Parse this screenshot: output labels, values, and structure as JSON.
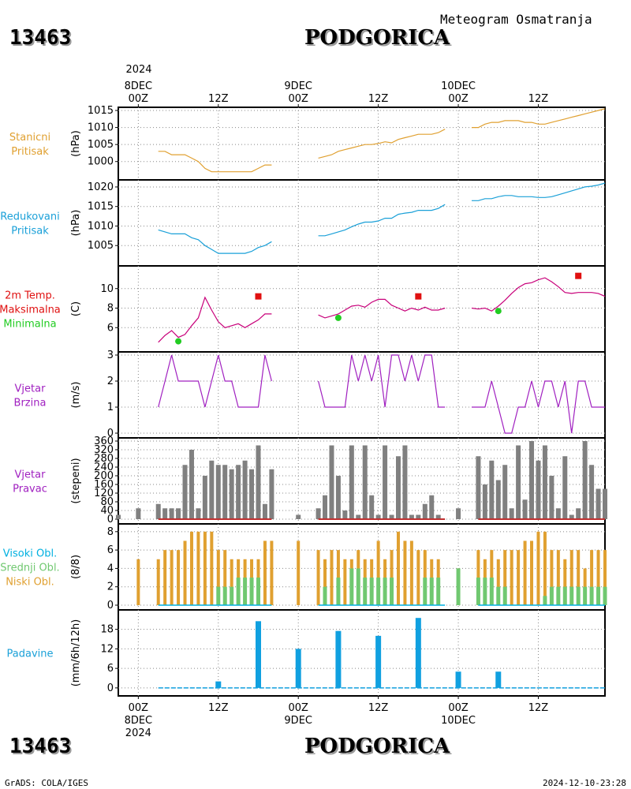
{
  "header": {
    "station_id": "13463",
    "station_name": "PODGORICA",
    "subtitle": "Meteogram Osmatranja"
  },
  "footer": {
    "station_id": "13463",
    "station_name": "PODGORICA",
    "credit": "GrADS: COLA/IGES",
    "timestamp": "2024-12-10-23:28"
  },
  "colors": {
    "pressure": "#e0a030",
    "reduced": "#1aa0d8",
    "tmax": "#c8007a",
    "tmin_marker": "#22cc22",
    "tmax_marker": "#e01010",
    "wind": "#a020c0",
    "dir_bars": "#808080",
    "dir_base": "#c03030",
    "high_cloud": "#00b0e0",
    "mid_cloud": "#70c870",
    "low_cloud": "#e0a030",
    "precip": "#10a0e0",
    "grid": "#888888"
  },
  "time_axis": {
    "top_year": "2024",
    "top_labels": [
      {
        "hour": 0,
        "lines": [
          "8DEC",
          "00Z"
        ]
      },
      {
        "hour": 12,
        "lines": [
          "12Z"
        ]
      },
      {
        "hour": 24,
        "lines": [
          "9DEC",
          "00Z"
        ]
      },
      {
        "hour": 36,
        "lines": [
          "12Z"
        ]
      },
      {
        "hour": 48,
        "lines": [
          "10DEC",
          "00Z"
        ]
      },
      {
        "hour": 60,
        "lines": [
          "12Z"
        ]
      }
    ],
    "bottom_labels": [
      {
        "hour": 0,
        "lines": [
          "00Z",
          "8DEC",
          "2024"
        ]
      },
      {
        "hour": 12,
        "lines": [
          "12Z"
        ]
      },
      {
        "hour": 24,
        "lines": [
          "00Z",
          "9DEC"
        ]
      },
      {
        "hour": 36,
        "lines": [
          "12Z"
        ]
      },
      {
        "hour": 48,
        "lines": [
          "00Z",
          "10DEC"
        ]
      },
      {
        "hour": 60,
        "lines": [
          "12Z"
        ]
      }
    ],
    "range": [
      -3,
      70
    ]
  },
  "chart_data": [
    {
      "type": "line",
      "labels": [
        "Stanicni",
        "Pritisak"
      ],
      "label_colors": [
        "pressure",
        "pressure"
      ],
      "ylabel": "(hPa)",
      "ylim": [
        996,
        1015
      ],
      "yticks": [
        1000,
        1005,
        1010,
        1015
      ],
      "series": [
        {
          "color": "pressure",
          "x": [
            3,
            4,
            5,
            6,
            7,
            8,
            9,
            10,
            11,
            12,
            13,
            14,
            15,
            16,
            17,
            18,
            19,
            20,
            27,
            28,
            29,
            30,
            31,
            32,
            33,
            34,
            35,
            36,
            37,
            38,
            39,
            40,
            41,
            42,
            43,
            44,
            45,
            46,
            50,
            51,
            52,
            53,
            54,
            55,
            56,
            57,
            58,
            59,
            60,
            61,
            62,
            63,
            64,
            65,
            66,
            67,
            68,
            69,
            70
          ],
          "y": [
            1003,
            1003,
            1002,
            1002,
            1002,
            1001,
            1000,
            998,
            997,
            997,
            997,
            997,
            997,
            997,
            997,
            998,
            999,
            999,
            1001,
            1001.5,
            1002,
            1003,
            1003.5,
            1004,
            1004.5,
            1005,
            1005,
            1005.3,
            1005.8,
            1005.5,
            1006.5,
            1007,
            1007.5,
            1008,
            1008,
            1008,
            1008.5,
            1009.5,
            1010,
            1010,
            1011,
            1011.5,
            1011.5,
            1012,
            1012,
            1012,
            1011.5,
            1011.5,
            1011,
            1011,
            1011.5,
            1012,
            1012.5,
            1013,
            1013.5,
            1014,
            1014.5,
            1015,
            1015.5
          ],
          "gaps_after": [
            20,
            46
          ]
        }
      ]
    },
    {
      "type": "line",
      "labels": [
        "Redukovani",
        "Pritisak"
      ],
      "label_colors": [
        "reduced",
        "reduced"
      ],
      "ylabel": "(hPa)",
      "ylim": [
        1001,
        1021
      ],
      "yticks": [
        1005,
        1010,
        1015,
        1020
      ],
      "series": [
        {
          "color": "reduced",
          "x": [
            3,
            4,
            5,
            6,
            7,
            8,
            9,
            10,
            11,
            12,
            13,
            14,
            15,
            16,
            17,
            18,
            19,
            20,
            27,
            28,
            29,
            30,
            31,
            32,
            33,
            34,
            35,
            36,
            37,
            38,
            39,
            40,
            41,
            42,
            43,
            44,
            45,
            46,
            50,
            51,
            52,
            53,
            54,
            55,
            56,
            57,
            58,
            59,
            60,
            61,
            62,
            63,
            64,
            65,
            66,
            67,
            68,
            69,
            70
          ],
          "y": [
            1009,
            1008.5,
            1008,
            1008,
            1008,
            1007,
            1006.5,
            1005,
            1004,
            1003,
            1003,
            1003,
            1003,
            1003,
            1003.5,
            1004.5,
            1005,
            1006,
            1007.5,
            1007.5,
            1008,
            1008.5,
            1009,
            1009.8,
            1010.5,
            1011,
            1011,
            1011.3,
            1012,
            1012,
            1013,
            1013.3,
            1013.5,
            1014,
            1014,
            1014,
            1014.5,
            1015.5,
            1016.5,
            1016.5,
            1017,
            1017,
            1017.5,
            1017.8,
            1017.8,
            1017.5,
            1017.5,
            1017.5,
            1017.3,
            1017.3,
            1017.5,
            1018,
            1018.5,
            1019,
            1019.5,
            1020,
            1020.2,
            1020.5,
            1021
          ],
          "gaps_after": [
            20,
            46
          ]
        }
      ]
    },
    {
      "type": "line",
      "labels": [
        "2m Temp.",
        "Maksimalna",
        "Minimalna"
      ],
      "label_colors": [
        "tmax_marker",
        "tmax_marker",
        "tmin_marker"
      ],
      "ylabel": "(C)",
      "ylim": [
        4,
        12
      ],
      "yticks": [
        6,
        8,
        10
      ],
      "series": [
        {
          "color": "tmax",
          "x": [
            3,
            4,
            5,
            6,
            7,
            8,
            9,
            10,
            11,
            12,
            13,
            14,
            15,
            16,
            17,
            18,
            19,
            20,
            27,
            28,
            29,
            30,
            31,
            32,
            33,
            34,
            35,
            36,
            37,
            38,
            39,
            40,
            41,
            42,
            43,
            44,
            45,
            46,
            50,
            51,
            52,
            53,
            54,
            55,
            56,
            57,
            58,
            59,
            60,
            61,
            62,
            63,
            64,
            65,
            66,
            67,
            68,
            69,
            70
          ],
          "y": [
            4.5,
            5.2,
            5.7,
            5,
            5.3,
            6.2,
            7,
            9.1,
            7.8,
            6.6,
            6.0,
            6.2,
            6.4,
            6.0,
            6.4,
            6.8,
            7.4,
            7.4,
            7.3,
            7.0,
            7.2,
            7.4,
            7.8,
            8.2,
            8.3,
            8.1,
            8.6,
            8.9,
            8.9,
            8.3,
            8.0,
            7.7,
            8.0,
            7.8,
            8.1,
            7.8,
            7.8,
            8.0,
            8.0,
            7.9,
            8.0,
            7.7,
            8.2,
            8.8,
            9.5,
            10.1,
            10.5,
            10.6,
            10.9,
            11.1,
            10.7,
            10.2,
            9.6,
            9.5,
            9.6,
            9.6,
            9.6,
            9.5,
            9.2
          ],
          "gaps_after": [
            20,
            46
          ]
        }
      ],
      "min_markers": [
        {
          "x": 6,
          "y": 4.6
        },
        {
          "x": 30,
          "y": 7.0
        },
        {
          "x": 54,
          "y": 7.7
        }
      ],
      "max_markers": [
        {
          "x": 18,
          "y": 9.2
        },
        {
          "x": 42,
          "y": 9.2
        },
        {
          "x": 66,
          "y": 11.3
        }
      ]
    },
    {
      "type": "line",
      "labels": [
        "Vjetar",
        "Brzina"
      ],
      "label_colors": [
        "wind",
        "wind"
      ],
      "ylabel": "(m/s)",
      "ylim": [
        0,
        3
      ],
      "yticks": [
        0,
        1,
        2,
        3
      ],
      "series": [
        {
          "color": "wind",
          "x": [
            3,
            4,
            5,
            6,
            7,
            8,
            9,
            10,
            11,
            12,
            13,
            14,
            15,
            16,
            17,
            18,
            19,
            20,
            27,
            28,
            29,
            30,
            31,
            32,
            33,
            34,
            35,
            36,
            37,
            38,
            39,
            40,
            41,
            42,
            43,
            44,
            45,
            46,
            50,
            51,
            52,
            53,
            54,
            55,
            56,
            57,
            58,
            59,
            60,
            61,
            62,
            63,
            64,
            65,
            66,
            67,
            68,
            69,
            70
          ],
          "y": [
            1,
            2,
            3,
            2,
            2,
            2,
            2,
            1,
            2,
            3,
            2,
            2,
            1,
            1,
            1,
            1,
            3,
            2,
            2,
            1,
            1,
            1,
            1,
            3,
            2,
            3,
            2,
            3,
            1,
            3,
            3,
            2,
            3,
            2,
            3,
            3,
            1,
            1,
            1,
            1,
            1,
            2,
            1,
            0,
            0,
            1,
            1,
            2,
            1,
            2,
            2,
            1,
            2,
            0,
            2,
            2,
            1,
            1,
            1
          ],
          "gaps_after": [
            20,
            46
          ]
        }
      ]
    },
    {
      "type": "bar",
      "labels": [
        "Vjetar",
        "Pravac"
      ],
      "label_colors": [
        "wind",
        "wind"
      ],
      "ylabel": "(stepeni)",
      "ylim": [
        0,
        360
      ],
      "yticks": [
        0,
        40,
        80,
        120,
        160,
        200,
        240,
        280,
        320,
        360
      ],
      "series": [
        {
          "color": "dir_bars",
          "x": [
            -3,
            0,
            3,
            4,
            5,
            6,
            7,
            8,
            9,
            10,
            11,
            12,
            13,
            14,
            15,
            16,
            17,
            18,
            19,
            20,
            24,
            27,
            28,
            29,
            30,
            31,
            32,
            33,
            34,
            35,
            36,
            37,
            38,
            39,
            40,
            41,
            42,
            43,
            44,
            45,
            48,
            51,
            52,
            53,
            54,
            55,
            56,
            57,
            58,
            59,
            60,
            61,
            62,
            63,
            64,
            65,
            66,
            67,
            68,
            69,
            70
          ],
          "y": [
            20,
            50,
            70,
            50,
            50,
            50,
            250,
            320,
            50,
            200,
            270,
            250,
            250,
            230,
            250,
            270,
            230,
            340,
            70,
            230,
            20,
            50,
            110,
            340,
            200,
            40,
            340,
            20,
            340,
            110,
            20,
            340,
            20,
            290,
            340,
            20,
            20,
            70,
            110,
            20,
            50,
            290,
            160,
            270,
            180,
            250,
            50,
            340,
            90,
            360,
            270,
            340,
            200,
            50,
            290,
            20,
            50,
            360,
            250,
            140,
            140
          ]
        }
      ]
    },
    {
      "type": "bar",
      "labels": [
        "Visoki Obl.",
        "Srednji Obl.",
        "Niski Obl."
      ],
      "label_colors": [
        "high_cloud",
        "mid_cloud",
        "low_cloud"
      ],
      "ylabel": "(8/8)",
      "ylim": [
        0,
        8.5
      ],
      "yticks": [
        0,
        2,
        4,
        6,
        8
      ],
      "series": [
        {
          "name": "Niski Obl.",
          "color": "low_cloud",
          "x": [
            0,
            3,
            4,
            5,
            6,
            7,
            8,
            9,
            10,
            11,
            12,
            13,
            14,
            15,
            16,
            17,
            18,
            19,
            20,
            24,
            27,
            28,
            29,
            30,
            31,
            32,
            33,
            34,
            35,
            36,
            37,
            38,
            39,
            40,
            41,
            42,
            43,
            44,
            45,
            48,
            51,
            52,
            53,
            54,
            55,
            56,
            57,
            58,
            59,
            60,
            61,
            62,
            63,
            64,
            65,
            66,
            67,
            68,
            69,
            70
          ],
          "y": [
            5,
            5,
            6,
            6,
            6,
            7,
            8,
            8,
            8,
            8,
            6,
            6,
            5,
            5,
            5,
            5,
            5,
            7,
            7,
            7,
            6,
            5,
            6,
            6,
            5,
            5,
            6,
            5,
            5,
            7,
            5,
            6,
            8,
            7,
            7,
            6,
            6,
            5,
            5,
            4,
            6,
            5,
            6,
            5,
            6,
            6,
            6,
            7,
            7,
            8,
            8,
            6,
            6,
            5,
            6,
            6,
            4,
            6,
            6,
            6
          ]
        },
        {
          "name": "Srednji Obl.",
          "color": "mid_cloud",
          "x": [
            12,
            13,
            14,
            15,
            16,
            17,
            18,
            28,
            30,
            32,
            33,
            34,
            35,
            36,
            37,
            38,
            43,
            44,
            45,
            48,
            51,
            52,
            53,
            54,
            55,
            61,
            62,
            63,
            64,
            65,
            66,
            67,
            68,
            69,
            70
          ],
          "y": [
            2,
            2,
            2,
            3,
            3,
            3,
            3,
            2,
            3,
            4,
            4,
            3,
            3,
            3,
            3,
            3,
            3,
            3,
            3,
            4,
            3,
            3,
            3,
            2,
            2,
            1,
            2,
            2,
            2,
            2,
            2,
            2,
            2,
            2,
            2
          ]
        }
      ]
    },
    {
      "type": "bar",
      "labels": [
        "Padavine"
      ],
      "label_colors": [
        "reduced"
      ],
      "ylabel": "(mm/6h/12h)",
      "ylim": [
        -1,
        23
      ],
      "yticks": [
        0,
        6,
        12,
        18
      ],
      "series": [
        {
          "color": "precip",
          "x": [
            12,
            18,
            24,
            30,
            36,
            42,
            48,
            54
          ],
          "y": [
            2,
            20.5,
            12,
            17.5,
            16,
            21.5,
            5,
            5
          ]
        }
      ]
    }
  ]
}
